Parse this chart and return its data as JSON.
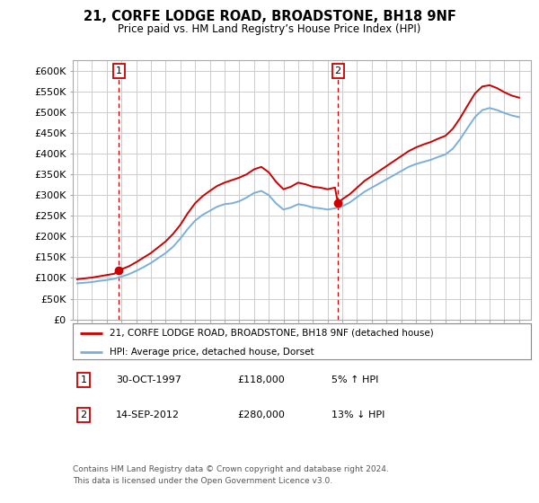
{
  "title": "21, CORFE LODGE ROAD, BROADSTONE, BH18 9NF",
  "subtitle": "Price paid vs. HM Land Registry’s House Price Index (HPI)",
  "legend_line1": "21, CORFE LODGE ROAD, BROADSTONE, BH18 9NF (detached house)",
  "legend_line2": "HPI: Average price, detached house, Dorset",
  "sale1_label": "30-OCT-1997",
  "sale1_price_str": "£118,000",
  "sale1_pct": "5% ↑ HPI",
  "sale1_x": 1997.83,
  "sale1_y": 118000,
  "sale2_label": "14-SEP-2012",
  "sale2_price_str": "£280,000",
  "sale2_pct": "13% ↓ HPI",
  "sale2_x": 2012.7,
  "sale2_y": 280000,
  "footer": "Contains HM Land Registry data © Crown copyright and database right 2024.\nThis data is licensed under the Open Government Licence v3.0.",
  "property_color": "#cc0000",
  "hpi_color": "#7aafdb",
  "vline_color": "#cc0000",
  "background_color": "#ffffff",
  "grid_color": "#cccccc",
  "ylim": [
    0,
    625000
  ],
  "xlim_left": 1994.7,
  "xlim_right": 2025.8,
  "hpi_data": [
    [
      1995.0,
      87000
    ],
    [
      1995.5,
      88500
    ],
    [
      1996.0,
      90000
    ],
    [
      1996.5,
      93000
    ],
    [
      1997.0,
      95000
    ],
    [
      1997.5,
      98000
    ],
    [
      1998.0,
      103000
    ],
    [
      1998.5,
      109000
    ],
    [
      1999.0,
      117000
    ],
    [
      1999.5,
      126000
    ],
    [
      2000.0,
      136000
    ],
    [
      2000.5,
      148000
    ],
    [
      2001.0,
      160000
    ],
    [
      2001.5,
      175000
    ],
    [
      2002.0,
      195000
    ],
    [
      2002.5,
      218000
    ],
    [
      2003.0,
      238000
    ],
    [
      2003.5,
      252000
    ],
    [
      2004.0,
      262000
    ],
    [
      2004.5,
      272000
    ],
    [
      2005.0,
      278000
    ],
    [
      2005.5,
      280000
    ],
    [
      2006.0,
      285000
    ],
    [
      2006.5,
      294000
    ],
    [
      2007.0,
      305000
    ],
    [
      2007.5,
      310000
    ],
    [
      2008.0,
      300000
    ],
    [
      2008.5,
      280000
    ],
    [
      2009.0,
      265000
    ],
    [
      2009.5,
      270000
    ],
    [
      2010.0,
      278000
    ],
    [
      2010.5,
      275000
    ],
    [
      2011.0,
      270000
    ],
    [
      2011.5,
      268000
    ],
    [
      2012.0,
      265000
    ],
    [
      2012.5,
      268000
    ],
    [
      2013.0,
      273000
    ],
    [
      2013.5,
      282000
    ],
    [
      2014.0,
      295000
    ],
    [
      2014.5,
      308000
    ],
    [
      2015.0,
      318000
    ],
    [
      2015.5,
      328000
    ],
    [
      2016.0,
      338000
    ],
    [
      2016.5,
      348000
    ],
    [
      2017.0,
      358000
    ],
    [
      2017.5,
      368000
    ],
    [
      2018.0,
      375000
    ],
    [
      2018.5,
      380000
    ],
    [
      2019.0,
      385000
    ],
    [
      2019.5,
      392000
    ],
    [
      2020.0,
      398000
    ],
    [
      2020.5,
      412000
    ],
    [
      2021.0,
      435000
    ],
    [
      2021.5,
      462000
    ],
    [
      2022.0,
      488000
    ],
    [
      2022.5,
      505000
    ],
    [
      2023.0,
      510000
    ],
    [
      2023.5,
      505000
    ],
    [
      2024.0,
      498000
    ],
    [
      2024.5,
      492000
    ],
    [
      2025.0,
      488000
    ]
  ],
  "prop_data_seg1": [
    [
      1995.0,
      97000
    ],
    [
      1995.5,
      99000
    ],
    [
      1996.0,
      101000
    ],
    [
      1996.5,
      104000
    ],
    [
      1997.0,
      107000
    ],
    [
      1997.5,
      110000
    ],
    [
      1997.83,
      118000
    ],
    [
      1998.0,
      121000
    ],
    [
      1998.5,
      128000
    ],
    [
      1999.0,
      138000
    ],
    [
      1999.5,
      149000
    ],
    [
      2000.0,
      160000
    ],
    [
      2000.5,
      174000
    ],
    [
      2001.0,
      188000
    ],
    [
      2001.5,
      206000
    ],
    [
      2002.0,
      228000
    ],
    [
      2002.5,
      256000
    ],
    [
      2003.0,
      280000
    ],
    [
      2003.5,
      297000
    ],
    [
      2004.0,
      310000
    ],
    [
      2004.5,
      322000
    ],
    [
      2005.0,
      330000
    ],
    [
      2005.5,
      336000
    ],
    [
      2006.0,
      342000
    ],
    [
      2006.5,
      350000
    ],
    [
      2007.0,
      362000
    ],
    [
      2007.5,
      368000
    ],
    [
      2008.0,
      355000
    ],
    [
      2008.5,
      332000
    ],
    [
      2009.0,
      314000
    ],
    [
      2009.5,
      320000
    ],
    [
      2010.0,
      330000
    ],
    [
      2010.5,
      326000
    ],
    [
      2011.0,
      320000
    ],
    [
      2011.5,
      318000
    ],
    [
      2012.0,
      314000
    ],
    [
      2012.5,
      318000
    ],
    [
      2012.7,
      280000
    ]
  ],
  "prop_data_seg2": [
    [
      2012.7,
      280000
    ],
    [
      2013.0,
      290000
    ],
    [
      2013.5,
      302000
    ],
    [
      2014.0,
      318000
    ],
    [
      2014.5,
      334000
    ],
    [
      2015.0,
      346000
    ],
    [
      2015.5,
      358000
    ],
    [
      2016.0,
      370000
    ],
    [
      2016.5,
      382000
    ],
    [
      2017.0,
      394000
    ],
    [
      2017.5,
      406000
    ],
    [
      2018.0,
      415000
    ],
    [
      2018.5,
      422000
    ],
    [
      2019.0,
      428000
    ],
    [
      2019.5,
      436000
    ],
    [
      2020.0,
      443000
    ],
    [
      2020.5,
      460000
    ],
    [
      2021.0,
      486000
    ],
    [
      2021.5,
      516000
    ],
    [
      2022.0,
      545000
    ],
    [
      2022.5,
      562000
    ],
    [
      2023.0,
      565000
    ],
    [
      2023.5,
      558000
    ],
    [
      2024.0,
      548000
    ],
    [
      2024.5,
      540000
    ],
    [
      2025.0,
      535000
    ]
  ]
}
